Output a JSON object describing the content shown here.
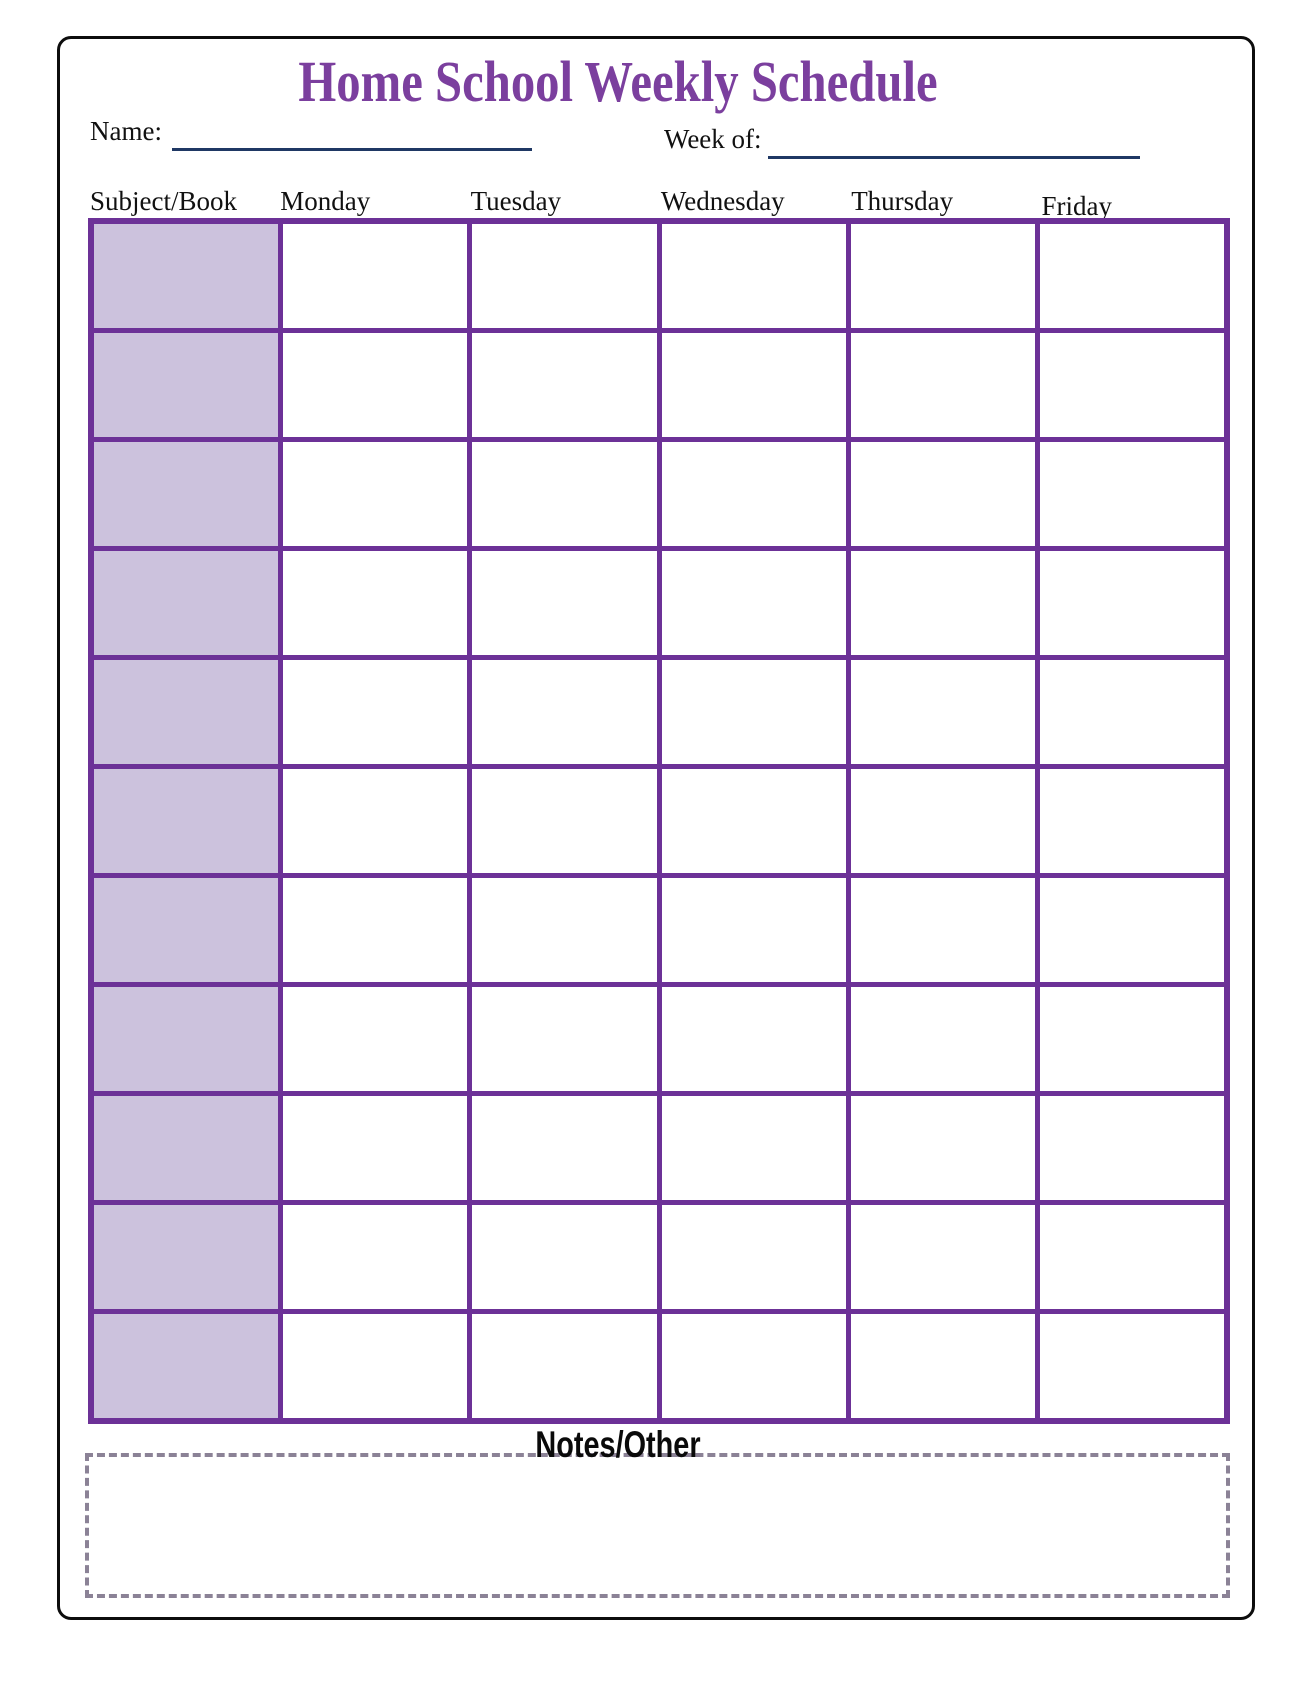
{
  "title": "Home School Weekly Schedule",
  "fields": {
    "name_label": "Name:",
    "name_value": "",
    "week_of_label": "Week of:",
    "week_of_value": ""
  },
  "table": {
    "headers": [
      "Subject/Book",
      "Monday",
      "Tuesday",
      "Wednesday",
      "Thursday",
      "Friday"
    ],
    "row_count": 11,
    "column_count": 6,
    "cell_values": []
  },
  "notes": {
    "label": "Notes/Other",
    "value": ""
  },
  "colors": {
    "title_purple": "#7b3f9e",
    "table_border_purple": "#6c3197",
    "subject_column_fill": "#ccc2dd",
    "field_underline_navy": "#1f3864",
    "notes_border_gray": "#8b8296",
    "page_border_black": "#0d0d0d"
  }
}
